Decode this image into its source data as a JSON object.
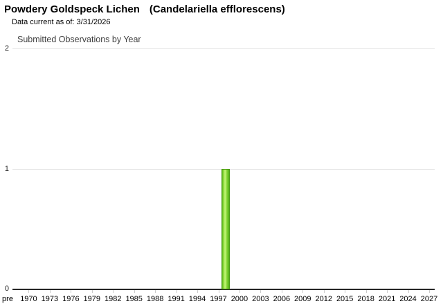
{
  "header": {
    "common_name": "Powdery Goldspeck Lichen",
    "scientific_name": "(Candelariella efflorescens)",
    "data_current_note": "Data current as of: 3/31/2026"
  },
  "chart_data": {
    "type": "bar",
    "title": "Submitted Observations by Year",
    "xlabel": "",
    "ylabel": "",
    "ylim": [
      0,
      2
    ],
    "y_ticks": [
      0,
      1,
      2
    ],
    "x_tick_labels": [
      "pre",
      "1970",
      "1973",
      "1976",
      "1979",
      "1982",
      "1985",
      "1988",
      "1991",
      "1994",
      "1997",
      "2000",
      "2003",
      "2006",
      "2009",
      "2012",
      "2015",
      "2018",
      "2021",
      "2024",
      "2027"
    ],
    "x_tick_year_start": 1970,
    "x_tick_year_step": 3,
    "bars": [
      {
        "year": 1998,
        "value": 1
      }
    ],
    "grid": "horizontal",
    "legend_position": "none",
    "colors": {
      "bar_fill_mid": "#8edc3e",
      "bar_fill_highlight": "#c4f47e",
      "bar_border": "#47980f",
      "gridline": "#e2e2e2",
      "axis": "#262626",
      "tick": "#c9c9c9",
      "title_text": "#000000",
      "chart_title_text": "#3f3f3f"
    }
  }
}
